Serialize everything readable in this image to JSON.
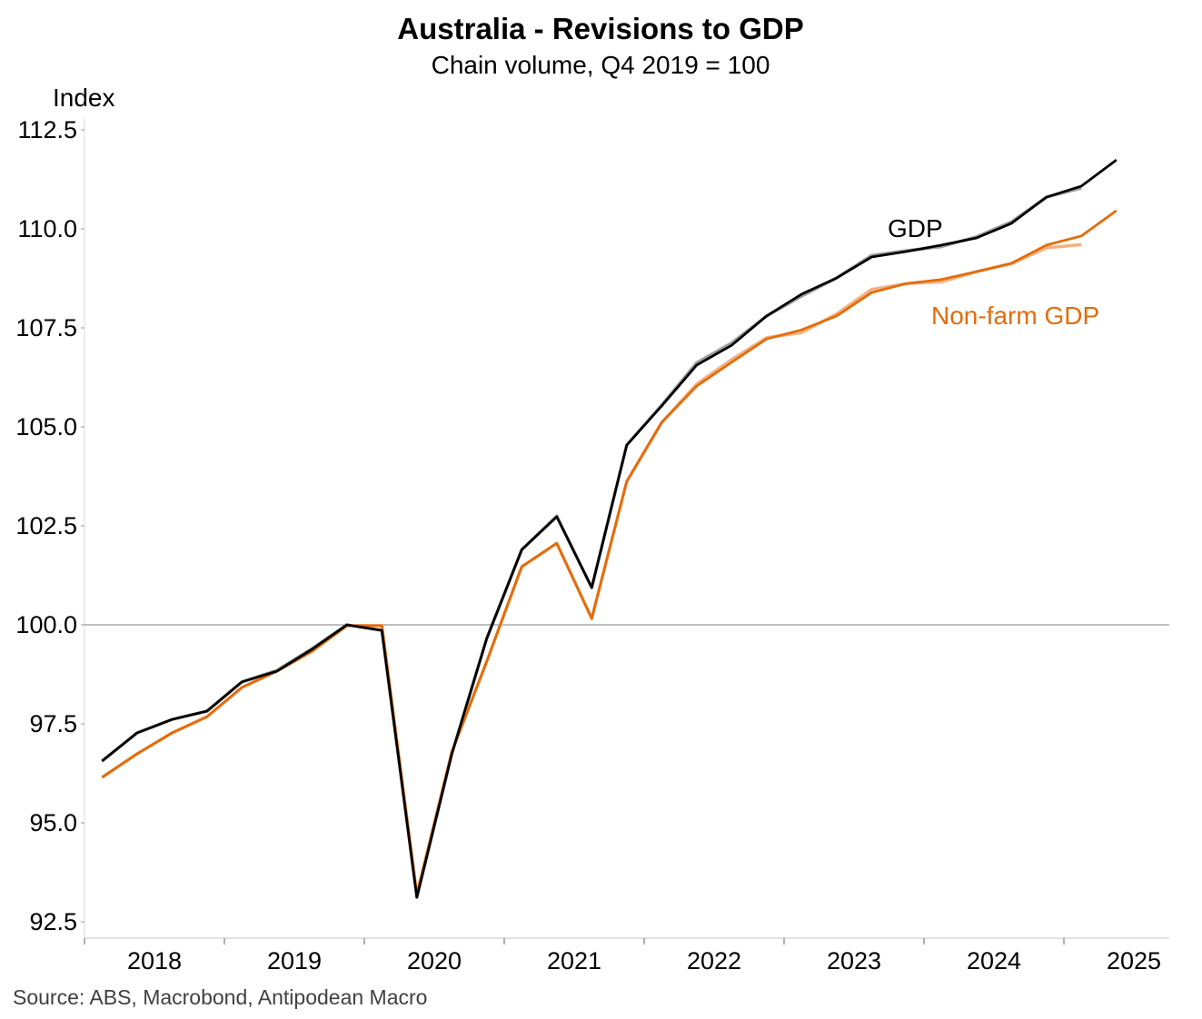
{
  "chart_data": {
    "type": "line",
    "title": "Australia - Revisions to GDP",
    "subtitle": "Chain volume, Q4 2019 = 100",
    "ylabel": "Index",
    "xlabel": "",
    "ylim": [
      92.1,
      112.5
    ],
    "yticks": [
      "92.5",
      "95.0",
      "97.5",
      "100.0",
      "102.5",
      "105.0",
      "107.5",
      "110.0",
      "112.5"
    ],
    "xticks": [
      "2018",
      "2019",
      "2020",
      "2021",
      "2022",
      "2023",
      "2024",
      "2025"
    ],
    "reference_line": 100,
    "x_start": "2018 Q1",
    "frequency": "quarterly",
    "series": [
      {
        "name": "GDP",
        "color": "#000000",
        "values": [
          96.56,
          97.27,
          97.61,
          97.82,
          98.56,
          98.83,
          99.38,
          100.0,
          99.86,
          93.12,
          96.74,
          99.66,
          101.9,
          102.73,
          100.94,
          104.54,
          105.53,
          106.56,
          107.06,
          107.8,
          108.35,
          108.76,
          109.29,
          109.43,
          109.59,
          109.77,
          110.14,
          110.8,
          111.08,
          111.74
        ]
      },
      {
        "name": "Non-farm GDP",
        "color": "#E36C0A",
        "values": [
          96.15,
          96.74,
          97.27,
          97.68,
          98.42,
          98.83,
          99.33,
          99.98,
          99.98,
          93.19,
          96.79,
          99.08,
          101.47,
          102.06,
          100.16,
          103.62,
          105.11,
          106.03,
          106.63,
          107.22,
          107.45,
          107.8,
          108.39,
          108.62,
          108.72,
          108.92,
          109.13,
          109.59,
          109.82,
          110.46
        ]
      }
    ],
    "previous_vintage": [
      {
        "color": "#A0A0A0",
        "values": [
          96.56,
          97.27,
          97.61,
          97.82,
          98.56,
          98.85,
          99.4,
          100.0,
          99.86,
          93.12,
          96.74,
          99.66,
          101.9,
          102.75,
          100.94,
          104.54,
          105.55,
          106.62,
          107.12,
          107.8,
          108.3,
          108.76,
          109.33,
          109.45,
          109.55,
          109.8,
          110.18,
          110.8,
          111.03
        ]
      },
      {
        "color": "#F4B183",
        "values": [
          96.15,
          96.74,
          97.27,
          97.68,
          98.42,
          98.83,
          99.33,
          99.98,
          99.98,
          93.19,
          96.79,
          99.08,
          101.47,
          102.06,
          100.16,
          103.62,
          105.11,
          106.08,
          106.7,
          107.25,
          107.38,
          107.85,
          108.47,
          108.62,
          108.66,
          108.92,
          109.12,
          109.52,
          109.6
        ]
      }
    ],
    "legend_placement": "inline labels near series ends",
    "source": "Source: ABS, Macrobond, Antipodean Macro"
  }
}
